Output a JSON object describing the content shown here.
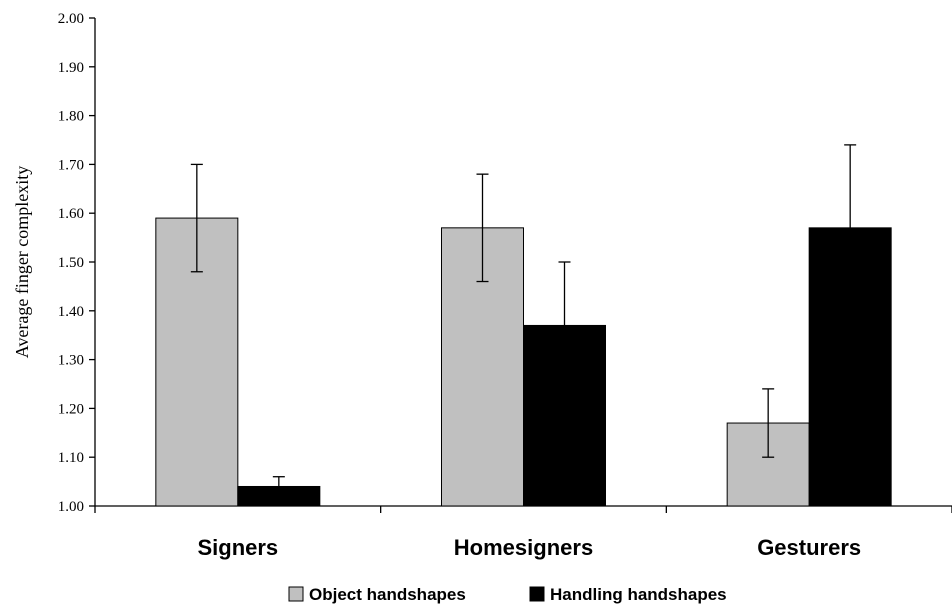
{
  "chart_data": {
    "type": "bar",
    "ylabel": "Average finger complexity",
    "xlabel": "",
    "ylim": [
      1.0,
      2.0
    ],
    "y_ticks": [
      "1.00",
      "1.10",
      "1.20",
      "1.30",
      "1.40",
      "1.50",
      "1.60",
      "1.70",
      "1.80",
      "1.90",
      "2.00"
    ],
    "categories": [
      "Signers",
      "Homesigners",
      "Gesturers"
    ],
    "series": [
      {
        "name": "Object handshapes",
        "color": "#c0c0c0",
        "values": [
          1.59,
          1.57,
          1.17
        ],
        "error": [
          0.11,
          0.11,
          0.07
        ]
      },
      {
        "name": "Handling handshapes",
        "color": "#000000",
        "values": [
          1.04,
          1.37,
          1.57
        ],
        "error": [
          0.02,
          0.13,
          0.17
        ]
      }
    ],
    "grid": false,
    "error_bars": true,
    "legend_position": "bottom"
  }
}
